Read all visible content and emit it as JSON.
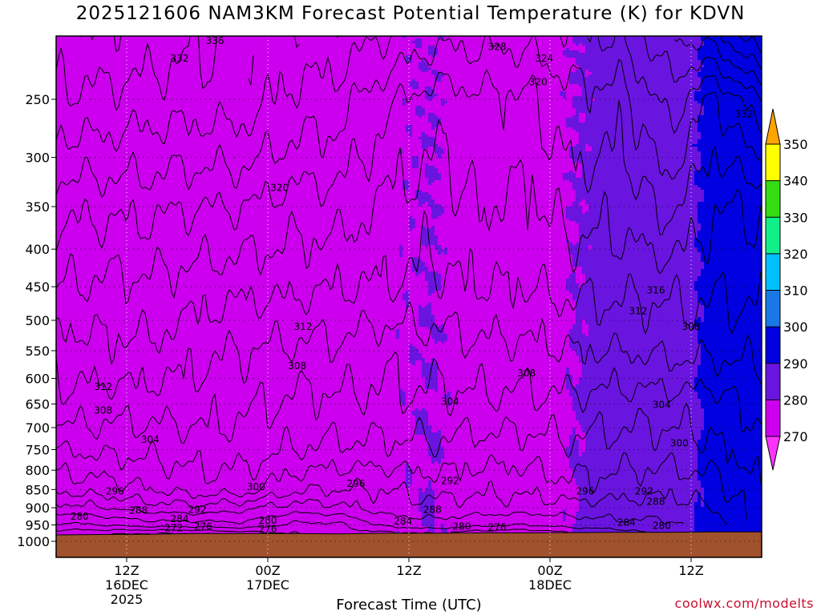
{
  "chart_data": {
    "type": "heatmap",
    "title": "2025121606 NAM3KM Forecast Potential Temperature (K) for KDVN",
    "xlabel": "Forecast Time (UTC)",
    "ylabel": "",
    "credit": "coolwx.com/modelts",
    "x_ticks": [
      {
        "hour": 6,
        "lines": [
          "12Z",
          "16DEC",
          "2025"
        ]
      },
      {
        "hour": 18,
        "lines": [
          "00Z",
          "17DEC"
        ]
      },
      {
        "hour": 30,
        "lines": [
          "12Z"
        ]
      },
      {
        "hour": 42,
        "lines": [
          "00Z",
          "18DEC"
        ]
      },
      {
        "hour": 54,
        "lines": [
          "12Z"
        ]
      }
    ],
    "xlim_hours": [
      0,
      60
    ],
    "y_ticks": [
      250,
      300,
      350,
      400,
      450,
      500,
      550,
      600,
      650,
      700,
      750,
      800,
      850,
      900,
      950,
      1000
    ],
    "ylim_hpa": [
      1015,
      200
    ],
    "y_scale": "log-pressure",
    "grid": true,
    "colorbar": {
      "ticks": [
        350,
        340,
        330,
        320,
        310,
        300,
        290,
        280,
        270
      ],
      "bins": [
        {
          "from": 340,
          "to": 350,
          "color": "#ffff00"
        },
        {
          "from": 330,
          "to": 340,
          "color": "#33dd11"
        },
        {
          "from": 320,
          "to": 330,
          "color": "#11f088"
        },
        {
          "from": 310,
          "to": 320,
          "color": "#00bfff"
        },
        {
          "from": 300,
          "to": 310,
          "color": "#1a78e6"
        },
        {
          "from": 290,
          "to": 300,
          "color": "#0000e0"
        },
        {
          "from": 280,
          "to": 290,
          "color": "#6a14e0"
        },
        {
          "from": 270,
          "to": 280,
          "color": "#cc00ee"
        }
      ],
      "over_color": "#ffa500",
      "under_color": "#ff33ff"
    },
    "ground_color": "#a0522d",
    "field": {
      "hours": [
        0,
        4,
        8,
        12,
        16,
        20,
        24,
        28,
        32,
        36,
        40,
        44,
        48,
        52,
        56,
        60
      ],
      "sfc_hpa": [
        980,
        979,
        978,
        976,
        976,
        976,
        977,
        975,
        975,
        974,
        974,
        973,
        972,
        972,
        971,
        971
      ],
      "theta_sfc": [
        273,
        272,
        271,
        272,
        274,
        276,
        278,
        279,
        280,
        278,
        277,
        280,
        282,
        286,
        292,
        298
      ],
      "theta_950": [
        279,
        280,
        282,
        282,
        283,
        279,
        279,
        285,
        287,
        285,
        284,
        286,
        287,
        287,
        290,
        298
      ],
      "theta_900": [
        286,
        288,
        290,
        291,
        289,
        286,
        287,
        290,
        290,
        290,
        290,
        290,
        290,
        290,
        292,
        300
      ],
      "theta_850": [
        293,
        294,
        296,
        298,
        298,
        293,
        292,
        292,
        294,
        293,
        293,
        295,
        294,
        293,
        294,
        300
      ],
      "theta_750": [
        300,
        301,
        301,
        302,
        302,
        300,
        299,
        299,
        299,
        298,
        298,
        299,
        298,
        298,
        299,
        303
      ],
      "theta_650": [
        307,
        306,
        306,
        306,
        305,
        303,
        303,
        303,
        303,
        303,
        303,
        303,
        302,
        302,
        302,
        305
      ],
      "theta_550": [
        310,
        311,
        311,
        309,
        308,
        307,
        307,
        305,
        306,
        307,
        307,
        308,
        308,
        309,
        309,
        309
      ],
      "theta_450": [
        316,
        315,
        315,
        314,
        313,
        313,
        312,
        312,
        311,
        312,
        312,
        313,
        313,
        313,
        313,
        313
      ],
      "theta_350": [
        321,
        321,
        321,
        320,
        320,
        318,
        318,
        315,
        314,
        316,
        315,
        318,
        317,
        321,
        316,
        316
      ],
      "theta_250": [
        331,
        331,
        330,
        330,
        330,
        327,
        326,
        321,
        318,
        319,
        319,
        323,
        322,
        330,
        323,
        332
      ],
      "theta_200": [
        335,
        336,
        335,
        333,
        331,
        331,
        331,
        329,
        326,
        326,
        326,
        328,
        329,
        336,
        340,
        350
      ]
    },
    "contour_labels": [
      {
        "value": 336,
        "hour": 13.5,
        "hpa": 208
      },
      {
        "value": 332,
        "hour": 10.5,
        "hpa": 220
      },
      {
        "value": 328,
        "hour": 37.5,
        "hpa": 212
      },
      {
        "value": 324,
        "hour": 41.5,
        "hpa": 220
      },
      {
        "value": 320,
        "hour": 41,
        "hpa": 237
      },
      {
        "value": 332,
        "hour": 58.5,
        "hpa": 262
      },
      {
        "value": 320,
        "hour": 19,
        "hpa": 330
      },
      {
        "value": 316,
        "hour": 51,
        "hpa": 455
      },
      {
        "value": 312,
        "hour": 49.5,
        "hpa": 486
      },
      {
        "value": 312,
        "hour": 21,
        "hpa": 510
      },
      {
        "value": 308,
        "hour": 54,
        "hpa": 510
      },
      {
        "value": 308,
        "hour": 20.5,
        "hpa": 577
      },
      {
        "value": 308,
        "hour": 40,
        "hpa": 590
      },
      {
        "value": 312,
        "hour": 4,
        "hpa": 616
      },
      {
        "value": 304,
        "hour": 33.5,
        "hpa": 645
      },
      {
        "value": 304,
        "hour": 51.5,
        "hpa": 652
      },
      {
        "value": 308,
        "hour": 4,
        "hpa": 663
      },
      {
        "value": 304,
        "hour": 8,
        "hpa": 727
      },
      {
        "value": 300,
        "hour": 53,
        "hpa": 735
      },
      {
        "value": 296,
        "hour": 5,
        "hpa": 855
      },
      {
        "value": 300,
        "hour": 17,
        "hpa": 843
      },
      {
        "value": 296,
        "hour": 25.5,
        "hpa": 835
      },
      {
        "value": 292,
        "hour": 33.5,
        "hpa": 827
      },
      {
        "value": 296,
        "hour": 45,
        "hpa": 855
      },
      {
        "value": 292,
        "hour": 50,
        "hpa": 855
      },
      {
        "value": 288,
        "hour": 51,
        "hpa": 883
      },
      {
        "value": 288,
        "hour": 7,
        "hpa": 908
      },
      {
        "value": 292,
        "hour": 12,
        "hpa": 906
      },
      {
        "value": 288,
        "hour": 32,
        "hpa": 906
      },
      {
        "value": 280,
        "hour": 2,
        "hpa": 925
      },
      {
        "value": 284,
        "hour": 10.5,
        "hpa": 932
      },
      {
        "value": 280,
        "hour": 18,
        "hpa": 937
      },
      {
        "value": 284,
        "hour": 29.5,
        "hpa": 939
      },
      {
        "value": 284,
        "hour": 48.5,
        "hpa": 943
      },
      {
        "value": 276,
        "hour": 12.5,
        "hpa": 955
      },
      {
        "value": 272,
        "hour": 10,
        "hpa": 960
      },
      {
        "value": 276,
        "hour": 18,
        "hpa": 962
      },
      {
        "value": 280,
        "hour": 34.5,
        "hpa": 955
      },
      {
        "value": 276,
        "hour": 37.5,
        "hpa": 957
      },
      {
        "value": 280,
        "hour": 51.5,
        "hpa": 952
      }
    ]
  }
}
